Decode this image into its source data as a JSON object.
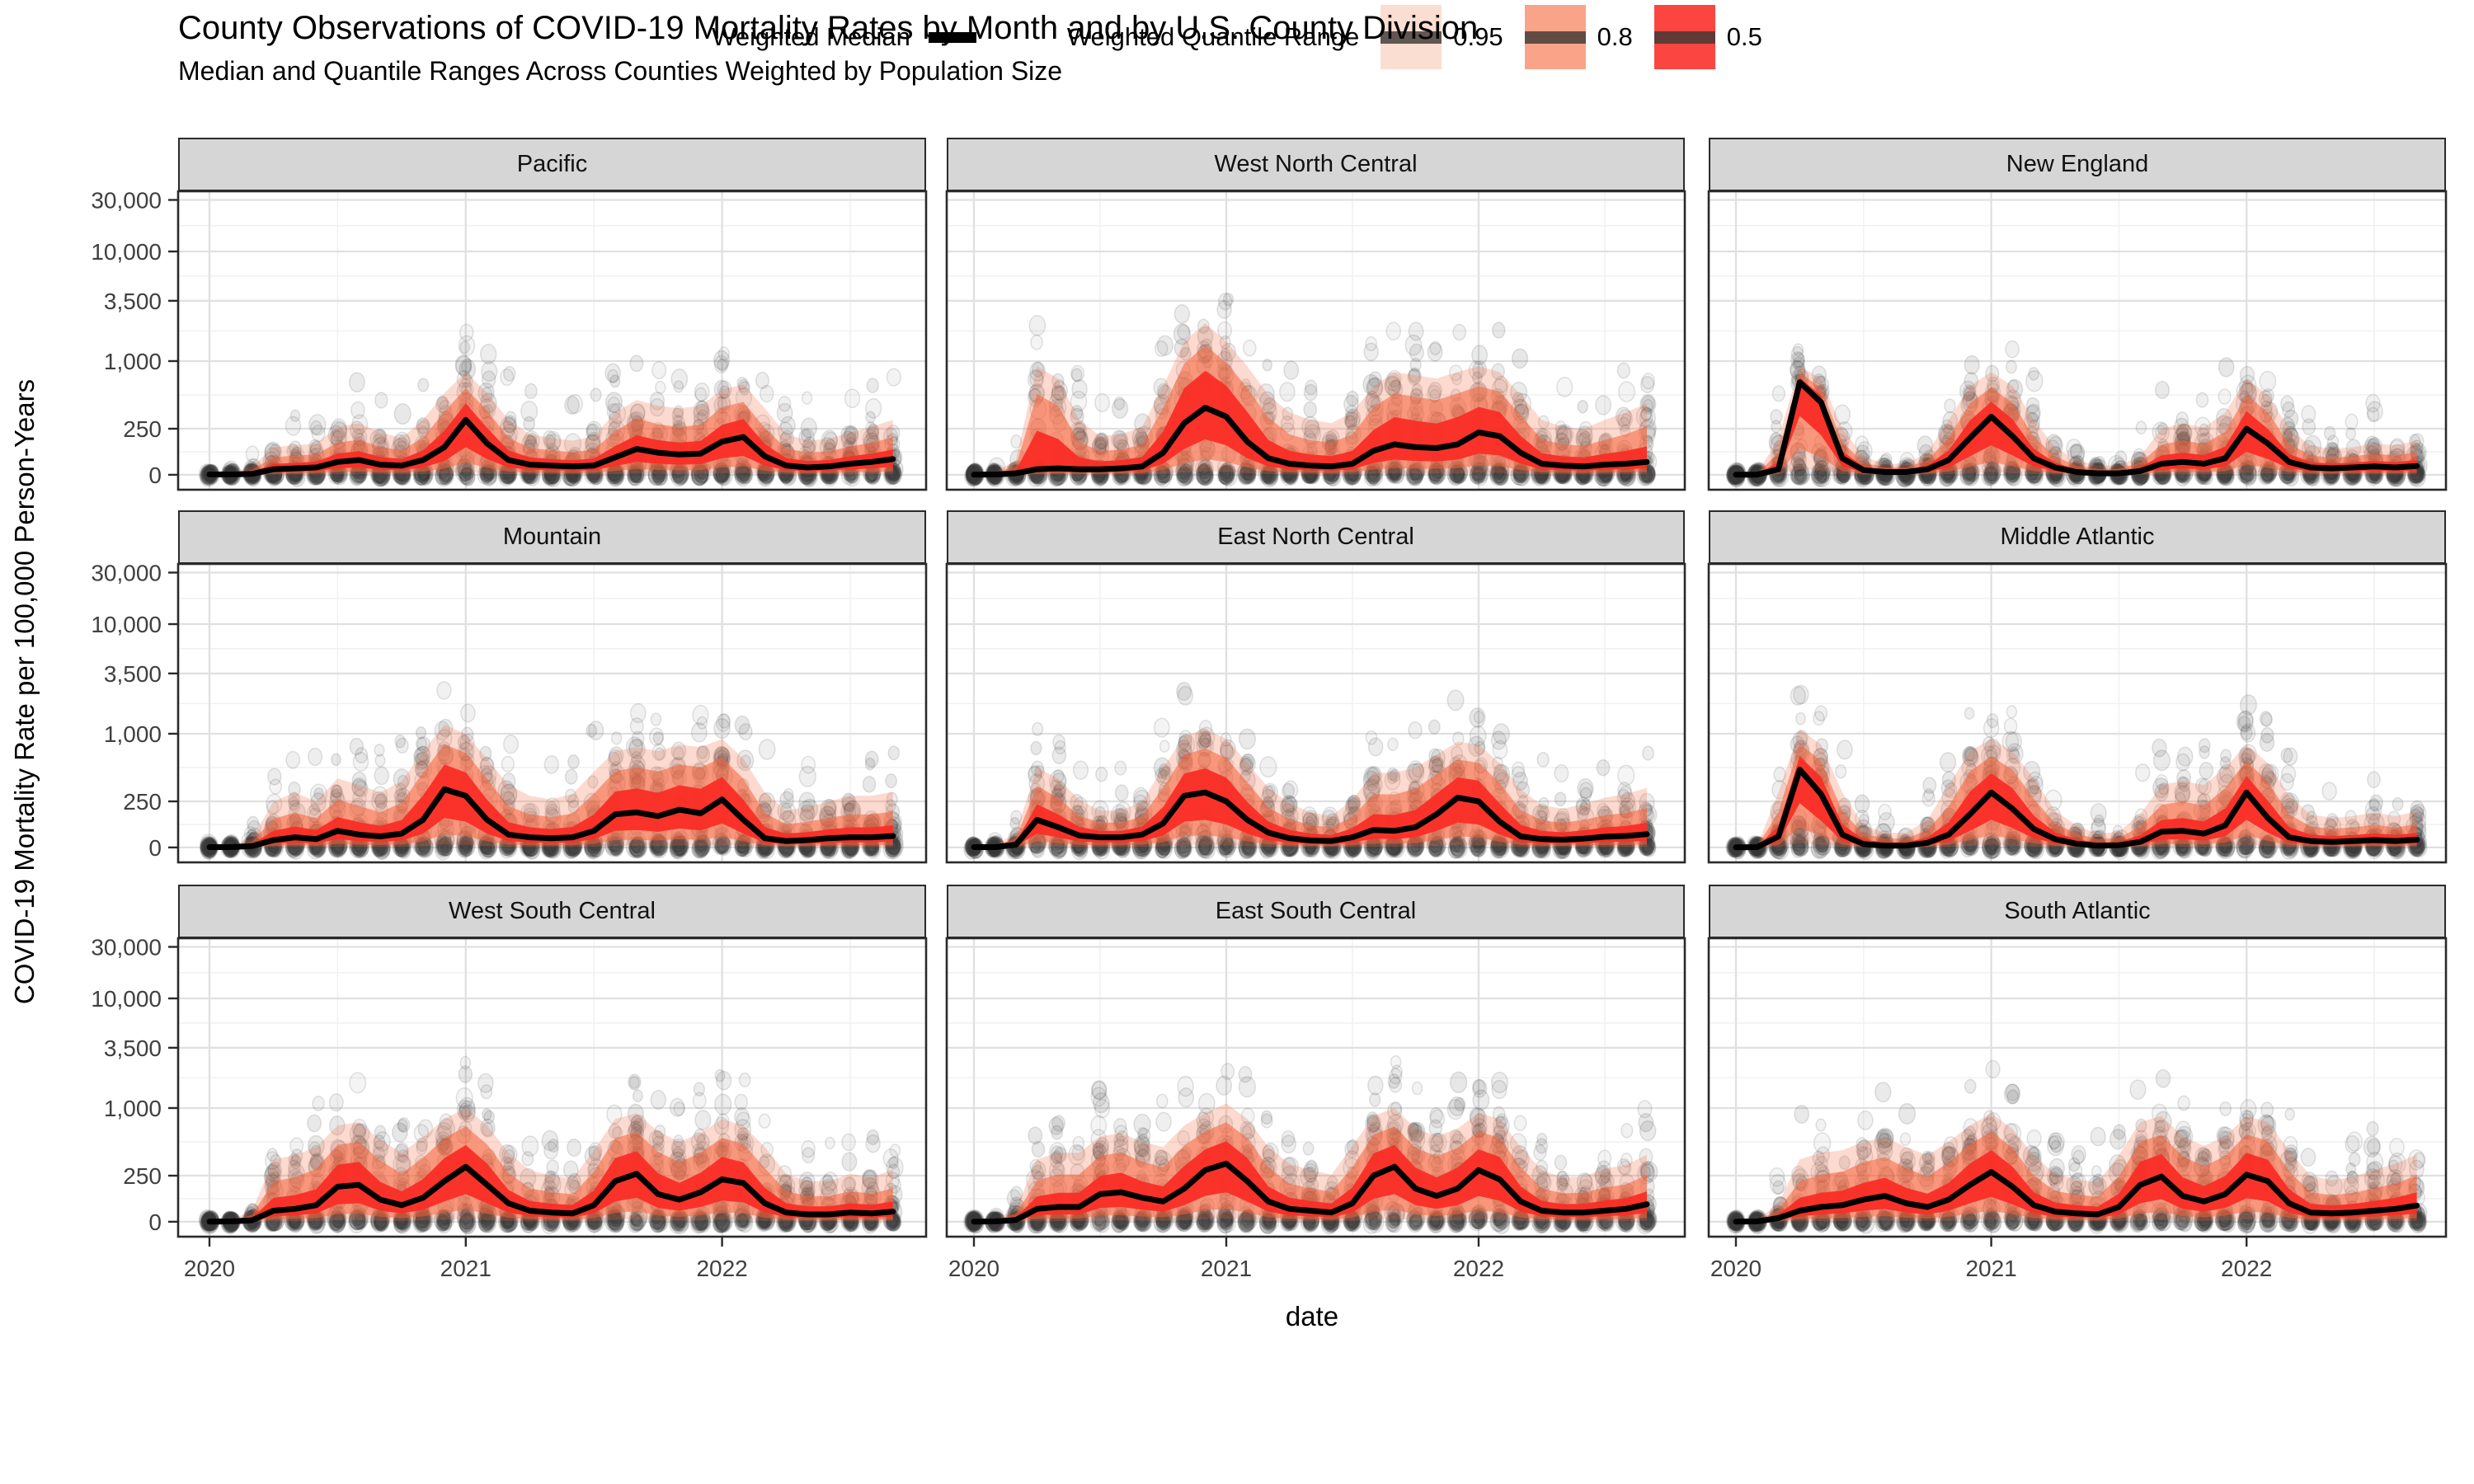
{
  "chart": {
    "title": "County Observations of COVID-19 Mortality Rates by Month and by U.S. County Division",
    "subtitle": "Median and Quantile Ranges Across Counties Weighted by Population Size",
    "xlabel": "date",
    "ylabel": "COVID-19 Mortality Rate per 100,000 Person-Years"
  },
  "legend": {
    "median_label": "Weighted Median",
    "median_color": "#000000",
    "range_label": "Weighted Quantile Range",
    "keys": [
      {
        "label": "0.95",
        "color": "#fbded2"
      },
      {
        "label": "0.8",
        "color": "#f9a488"
      },
      {
        "label": "0.5",
        "color": "#fa4540"
      }
    ]
  },
  "chart_data": {
    "type": "line",
    "description": "3x3 faceted panels; per facet: monthly weighted median line (black), nested weighted quantile ribbons (0.5 red, 0.8 salmon, 0.95 light pink), and semi-transparent gray points for individual county observations.",
    "x_start": "2020-01",
    "x_end": "2022-09",
    "n_months": 33,
    "x_ticks": {
      "labels": [
        "2020",
        "2021",
        "2022"
      ],
      "month_index": [
        0,
        12,
        24
      ]
    },
    "x_minor_month_index": [
      6,
      18,
      30
    ],
    "y_scale": "pseudo-log",
    "y_ticks": [
      0,
      250,
      1000,
      3500,
      10000,
      30000
    ],
    "y_tick_labels": [
      "0",
      "250",
      "1,000",
      "3,500",
      "10,000",
      "30,000"
    ],
    "ylim": [
      0,
      30000
    ],
    "grid": true,
    "legend_position": "bottom",
    "band_render_rules": {
      "note": "ribbon bounds derived from median m and q95_hi h",
      "q50": {
        "lo_frac_of_median": 0.5,
        "hi_frac_of_gap": 0.24
      },
      "q80": {
        "lo_frac_of_median": 0.22,
        "hi_frac_of_gap": 0.55
      },
      "q95": {
        "lo_frac_of_median": 0.05,
        "hi_frac_of_gap": 1.0
      }
    },
    "points_layer": {
      "color": "#3c3c3c",
      "note": "jittered county observations, heavy cluster at 0 each month"
    },
    "band_colors": {
      "q95": "rgba(244,106,66,0.25)",
      "q80": "rgba(246,96,56,0.55)",
      "q50": "rgba(250,45,38,0.95)"
    },
    "facets": [
      {
        "name": "Pacific",
        "median": [
          2,
          2,
          5,
          30,
          35,
          40,
          70,
          80,
          55,
          50,
          80,
          150,
          300,
          170,
          80,
          55,
          50,
          45,
          50,
          95,
          140,
          120,
          110,
          115,
          180,
          205,
          100,
          50,
          40,
          45,
          60,
          70,
          85
        ],
        "q95_hi": [
          10,
          12,
          45,
          150,
          160,
          170,
          260,
          280,
          230,
          200,
          300,
          520,
          800,
          520,
          300,
          220,
          200,
          185,
          210,
          350,
          450,
          400,
          380,
          400,
          560,
          620,
          380,
          220,
          185,
          195,
          230,
          260,
          300
        ]
      },
      {
        "name": "West North Central",
        "median": [
          1,
          2,
          8,
          30,
          35,
          30,
          30,
          35,
          45,
          120,
          280,
          385,
          320,
          180,
          90,
          60,
          50,
          45,
          60,
          130,
          165,
          150,
          145,
          165,
          230,
          210,
          120,
          60,
          50,
          45,
          55,
          60,
          70
        ],
        "q95_hi": [
          8,
          15,
          80,
          900,
          700,
          300,
          210,
          220,
          260,
          600,
          1500,
          2200,
          1500,
          900,
          500,
          350,
          300,
          280,
          350,
          600,
          800,
          750,
          700,
          800,
          900,
          800,
          500,
          300,
          260,
          250,
          300,
          350,
          420
        ]
      },
      {
        "name": "New England",
        "median": [
          1,
          1,
          30,
          650,
          430,
          90,
          25,
          15,
          15,
          30,
          80,
          200,
          320,
          210,
          90,
          40,
          15,
          8,
          8,
          20,
          60,
          70,
          60,
          90,
          250,
          170,
          70,
          40,
          35,
          40,
          45,
          40,
          48
        ],
        "q95_hi": [
          5,
          6,
          200,
          900,
          700,
          250,
          100,
          60,
          60,
          120,
          300,
          600,
          800,
          600,
          300,
          150,
          80,
          50,
          52,
          100,
          250,
          280,
          255,
          350,
          700,
          500,
          250,
          160,
          140,
          150,
          170,
          160,
          185
        ]
      },
      {
        "name": "Mountain",
        "median": [
          2,
          2,
          8,
          40,
          55,
          45,
          90,
          70,
          60,
          75,
          150,
          320,
          280,
          150,
          70,
          55,
          50,
          55,
          90,
          180,
          190,
          170,
          205,
          185,
          260,
          150,
          50,
          35,
          40,
          50,
          55,
          55,
          62
        ],
        "q95_hi": [
          10,
          10,
          50,
          250,
          300,
          250,
          400,
          350,
          300,
          380,
          700,
          1200,
          1000,
          600,
          350,
          280,
          260,
          290,
          460,
          700,
          760,
          700,
          800,
          760,
          900,
          600,
          300,
          200,
          220,
          250,
          280,
          280,
          305
        ]
      },
      {
        "name": "East North Central",
        "median": [
          2,
          2,
          15,
          150,
          110,
          65,
          55,
          55,
          70,
          130,
          280,
          300,
          250,
          150,
          80,
          50,
          38,
          35,
          55,
          95,
          90,
          110,
          180,
          270,
          250,
          140,
          60,
          45,
          42,
          48,
          58,
          62,
          72
        ],
        "q95_hi": [
          10,
          12,
          80,
          500,
          400,
          260,
          200,
          200,
          250,
          500,
          950,
          1100,
          900,
          550,
          330,
          240,
          190,
          170,
          260,
          450,
          450,
          500,
          650,
          850,
          800,
          550,
          320,
          230,
          210,
          235,
          270,
          290,
          330
        ]
      },
      {
        "name": "Middle Atlantic",
        "median": [
          1,
          2,
          60,
          480,
          290,
          70,
          18,
          10,
          10,
          25,
          70,
          180,
          300,
          210,
          100,
          45,
          20,
          10,
          12,
          30,
          85,
          90,
          75,
          120,
          300,
          160,
          55,
          35,
          30,
          35,
          40,
          35,
          42
        ],
        "q95_hi": [
          5,
          10,
          300,
          1100,
          800,
          300,
          120,
          80,
          80,
          150,
          350,
          700,
          900,
          700,
          400,
          200,
          120,
          75,
          85,
          180,
          350,
          380,
          350,
          500,
          800,
          550,
          280,
          180,
          160,
          170,
          190,
          170,
          195
        ]
      },
      {
        "name": "West South Central",
        "median": [
          1,
          2,
          8,
          60,
          70,
          90,
          190,
          200,
          120,
          90,
          130,
          220,
          300,
          200,
          100,
          60,
          50,
          45,
          90,
          220,
          260,
          150,
          120,
          160,
          230,
          210,
          100,
          50,
          40,
          40,
          50,
          45,
          55
        ],
        "q95_hi": [
          6,
          10,
          60,
          350,
          380,
          450,
          700,
          750,
          520,
          400,
          550,
          800,
          1000,
          700,
          400,
          280,
          250,
          235,
          420,
          800,
          900,
          620,
          500,
          600,
          800,
          700,
          450,
          260,
          220,
          220,
          260,
          240,
          285
        ]
      },
      {
        "name": "East South Central",
        "median": [
          1,
          2,
          10,
          70,
          80,
          80,
          150,
          160,
          130,
          110,
          180,
          280,
          320,
          220,
          110,
          70,
          60,
          50,
          100,
          250,
          300,
          180,
          140,
          180,
          280,
          230,
          110,
          60,
          50,
          50,
          60,
          70,
          95
        ],
        "q95_hi": [
          6,
          10,
          70,
          350,
          400,
          400,
          560,
          600,
          500,
          450,
          700,
          900,
          1100,
          800,
          450,
          320,
          280,
          255,
          460,
          850,
          1000,
          660,
          560,
          660,
          900,
          800,
          450,
          280,
          240,
          245,
          290,
          310,
          385
        ]
      },
      {
        "name": "South Atlantic",
        "median": [
          1,
          2,
          20,
          60,
          80,
          90,
          120,
          140,
          100,
          80,
          120,
          200,
          270,
          190,
          90,
          55,
          45,
          40,
          80,
          200,
          245,
          140,
          110,
          150,
          255,
          220,
          100,
          50,
          45,
          50,
          60,
          70,
          88
        ],
        "q95_hi": [
          6,
          10,
          100,
          350,
          400,
          420,
          500,
          550,
          450,
          380,
          500,
          700,
          900,
          650,
          380,
          260,
          230,
          215,
          380,
          750,
          850,
          560,
          460,
          560,
          850,
          750,
          420,
          250,
          225,
          245,
          280,
          320,
          385
        ]
      }
    ]
  }
}
